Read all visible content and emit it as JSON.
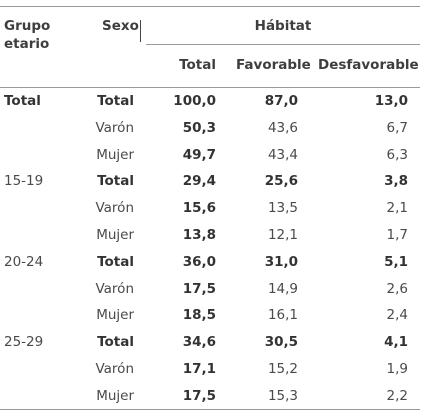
{
  "headers": {
    "grupo_line1": "Grupo",
    "grupo_line2": "etario",
    "sexo": "Sexo",
    "habitat": "Hábitat",
    "total": "Total",
    "favorable": "Favorable",
    "desfavorable": "Desfavorable"
  },
  "rows": [
    {
      "group": "Total",
      "sex": "Total",
      "total": "100,0",
      "favorable": "87,0",
      "desfavorable": "13,0",
      "bold": true
    },
    {
      "group": "",
      "sex": "Varón",
      "total": "50,3",
      "favorable": "43,6",
      "desfavorable": "6,7",
      "bold": false
    },
    {
      "group": "",
      "sex": "Mujer",
      "total": "49,7",
      "favorable": "43,4",
      "desfavorable": "6,3",
      "bold": false
    },
    {
      "group": "15-19",
      "sex": "Total",
      "total": "29,4",
      "favorable": "25,6",
      "desfavorable": "3,8",
      "bold": true
    },
    {
      "group": "",
      "sex": "Varón",
      "total": "15,6",
      "favorable": "13,5",
      "desfavorable": "2,1",
      "bold": false
    },
    {
      "group": "",
      "sex": "Mujer",
      "total": "13,8",
      "favorable": "12,1",
      "desfavorable": "1,7",
      "bold": false
    },
    {
      "group": "20-24",
      "sex": "Total",
      "total": "36,0",
      "favorable": "31,0",
      "desfavorable": "5,1",
      "bold": true
    },
    {
      "group": "",
      "sex": "Varón",
      "total": "17,5",
      "favorable": "14,9",
      "desfavorable": "2,6",
      "bold": false
    },
    {
      "group": "",
      "sex": "Mujer",
      "total": "18,5",
      "favorable": "16,1",
      "desfavorable": "2,4",
      "bold": false
    },
    {
      "group": "25-29",
      "sex": "Total",
      "total": "34,6",
      "favorable": "30,5",
      "desfavorable": "4,1",
      "bold": true
    },
    {
      "group": "",
      "sex": "Varón",
      "total": "17,1",
      "favorable": "15,2",
      "desfavorable": "1,9",
      "bold": false
    },
    {
      "group": "",
      "sex": "Mujer",
      "total": "17,5",
      "favorable": "15,3",
      "desfavorable": "2,2",
      "bold": false
    }
  ]
}
